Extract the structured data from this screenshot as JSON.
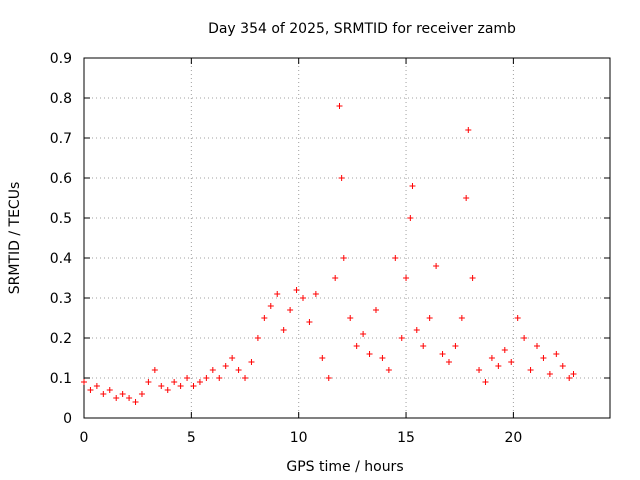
{
  "chart_data": {
    "type": "scatter",
    "title": "Day 354 of 2025, SRMTID for receiver zamb",
    "xlabel": "GPS time / hours",
    "ylabel": "SRMTID / TECUs",
    "xlim": [
      0,
      24.5
    ],
    "ylim": [
      0,
      0.9
    ],
    "x_ticks": [
      0,
      5,
      10,
      15,
      20
    ],
    "y_ticks": [
      0,
      0.1,
      0.2,
      0.3,
      0.4,
      0.5,
      0.6,
      0.7,
      0.8,
      0.9
    ],
    "grid": true,
    "marker": "plus",
    "series": [
      {
        "name": "SRMTID",
        "color": "#ff0000",
        "x": [
          0.0,
          0.3,
          0.6,
          0.9,
          1.2,
          1.5,
          1.8,
          2.1,
          2.4,
          2.7,
          3.0,
          3.3,
          3.6,
          3.9,
          4.2,
          4.5,
          4.8,
          5.1,
          5.4,
          5.7,
          6.0,
          6.3,
          6.6,
          6.9,
          7.2,
          7.5,
          7.8,
          8.1,
          8.4,
          8.7,
          9.0,
          9.3,
          9.6,
          9.9,
          10.2,
          10.5,
          10.8,
          11.1,
          11.4,
          11.7,
          11.9,
          12.0,
          12.1,
          12.4,
          12.7,
          13.0,
          13.3,
          13.6,
          13.9,
          14.2,
          14.5,
          14.8,
          15.0,
          15.2,
          15.3,
          15.5,
          15.8,
          16.1,
          16.4,
          16.7,
          17.0,
          17.3,
          17.6,
          17.8,
          17.9,
          18.1,
          18.4,
          18.7,
          19.0,
          19.3,
          19.6,
          19.9,
          20.2,
          20.5,
          20.8,
          21.1,
          21.4,
          21.7,
          22.0,
          22.3,
          22.6,
          22.8
        ],
        "y": [
          0.09,
          0.07,
          0.08,
          0.06,
          0.07,
          0.05,
          0.06,
          0.05,
          0.04,
          0.06,
          0.09,
          0.12,
          0.08,
          0.07,
          0.09,
          0.08,
          0.1,
          0.08,
          0.09,
          0.1,
          0.12,
          0.1,
          0.13,
          0.15,
          0.12,
          0.1,
          0.14,
          0.2,
          0.25,
          0.28,
          0.31,
          0.22,
          0.27,
          0.32,
          0.3,
          0.24,
          0.31,
          0.15,
          0.1,
          0.35,
          0.78,
          0.6,
          0.4,
          0.25,
          0.18,
          0.21,
          0.16,
          0.27,
          0.15,
          0.12,
          0.4,
          0.2,
          0.35,
          0.5,
          0.58,
          0.22,
          0.18,
          0.25,
          0.38,
          0.16,
          0.14,
          0.18,
          0.25,
          0.55,
          0.72,
          0.35,
          0.12,
          0.09,
          0.15,
          0.13,
          0.17,
          0.14,
          0.25,
          0.2,
          0.12,
          0.18,
          0.15,
          0.11,
          0.16,
          0.13,
          0.1,
          0.11
        ]
      }
    ]
  }
}
